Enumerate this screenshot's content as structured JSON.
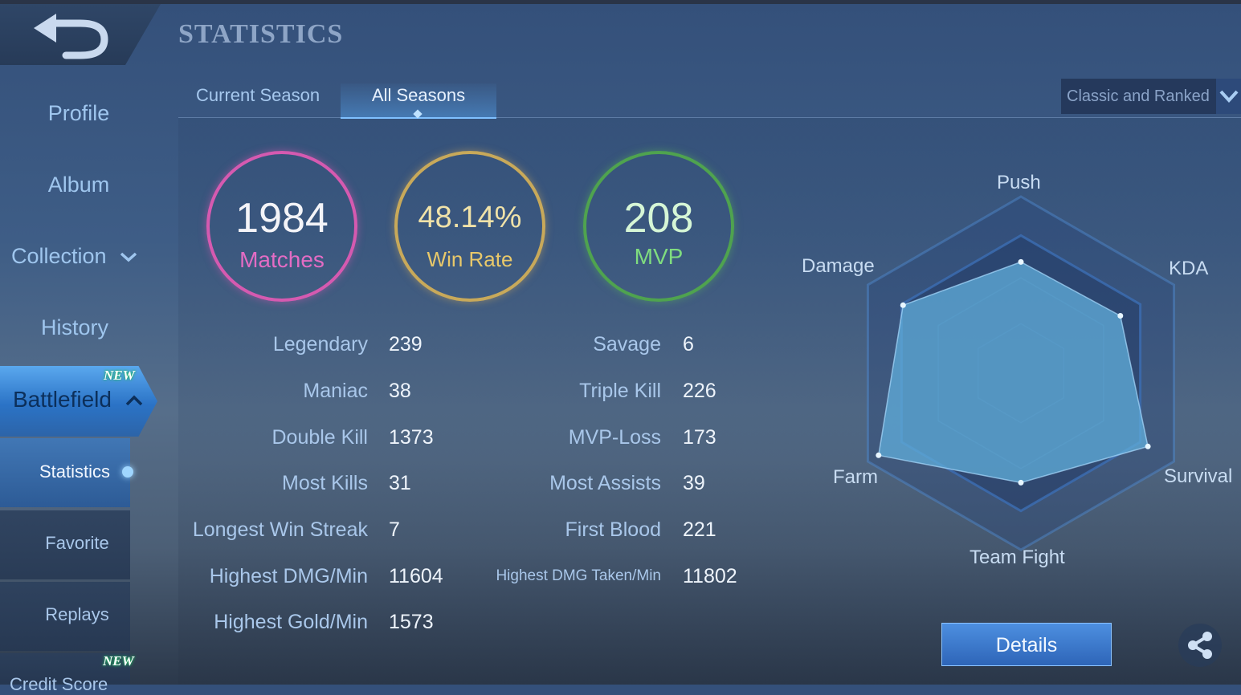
{
  "header": {
    "title": "STATISTICS"
  },
  "sidebar": {
    "items": [
      {
        "label": "Profile"
      },
      {
        "label": "Album"
      },
      {
        "label": "Collection"
      },
      {
        "label": "History"
      },
      {
        "label": "Battlefield",
        "badge": "NEW"
      }
    ],
    "sub_items": [
      {
        "label": "Statistics"
      },
      {
        "label": "Favorite"
      },
      {
        "label": "Replays"
      },
      {
        "label": "Credit Score",
        "badge": "NEW"
      }
    ]
  },
  "tabs": [
    {
      "label": "Current Season"
    },
    {
      "label": "All Seasons"
    }
  ],
  "mode_select": {
    "value": "Classic and Ranked"
  },
  "summary": {
    "matches": {
      "value": "1984",
      "label": "Matches",
      "color": "#e36cc4"
    },
    "win_rate": {
      "value": "48.14%",
      "label": "Win Rate",
      "color": "#e8c86a"
    },
    "mvp": {
      "value": "208",
      "label": "MVP",
      "color": "#7fdc7f"
    }
  },
  "stats_left": [
    {
      "label": "Legendary",
      "value": "239"
    },
    {
      "label": "Maniac",
      "value": "38"
    },
    {
      "label": "Double Kill",
      "value": "1373"
    },
    {
      "label": "Most Kills",
      "value": "31"
    },
    {
      "label": "Longest Win Streak",
      "value": "7"
    },
    {
      "label": "Highest DMG/Min",
      "value": "11604"
    },
    {
      "label": "Highest Gold/Min",
      "value": "1573"
    }
  ],
  "stats_right": [
    {
      "label": "Savage",
      "value": "6"
    },
    {
      "label": "Triple Kill",
      "value": "226"
    },
    {
      "label": "MVP-Loss",
      "value": "173"
    },
    {
      "label": "Most Assists",
      "value": "39"
    },
    {
      "label": "First Blood",
      "value": "221"
    },
    {
      "label": "Highest DMG Taken/Min",
      "value": "11802"
    }
  ],
  "radar": {
    "axes": [
      "Push",
      "KDA",
      "Survival",
      "Team Fight",
      "Farm",
      "Damage"
    ],
    "values": [
      0.63,
      0.65,
      0.83,
      0.62,
      0.93,
      0.77
    ]
  },
  "details_button": {
    "label": "Details"
  },
  "icons": {
    "back": "back-arrow-icon",
    "share": "share-icon",
    "dropdown": "chevron-down-icon"
  }
}
